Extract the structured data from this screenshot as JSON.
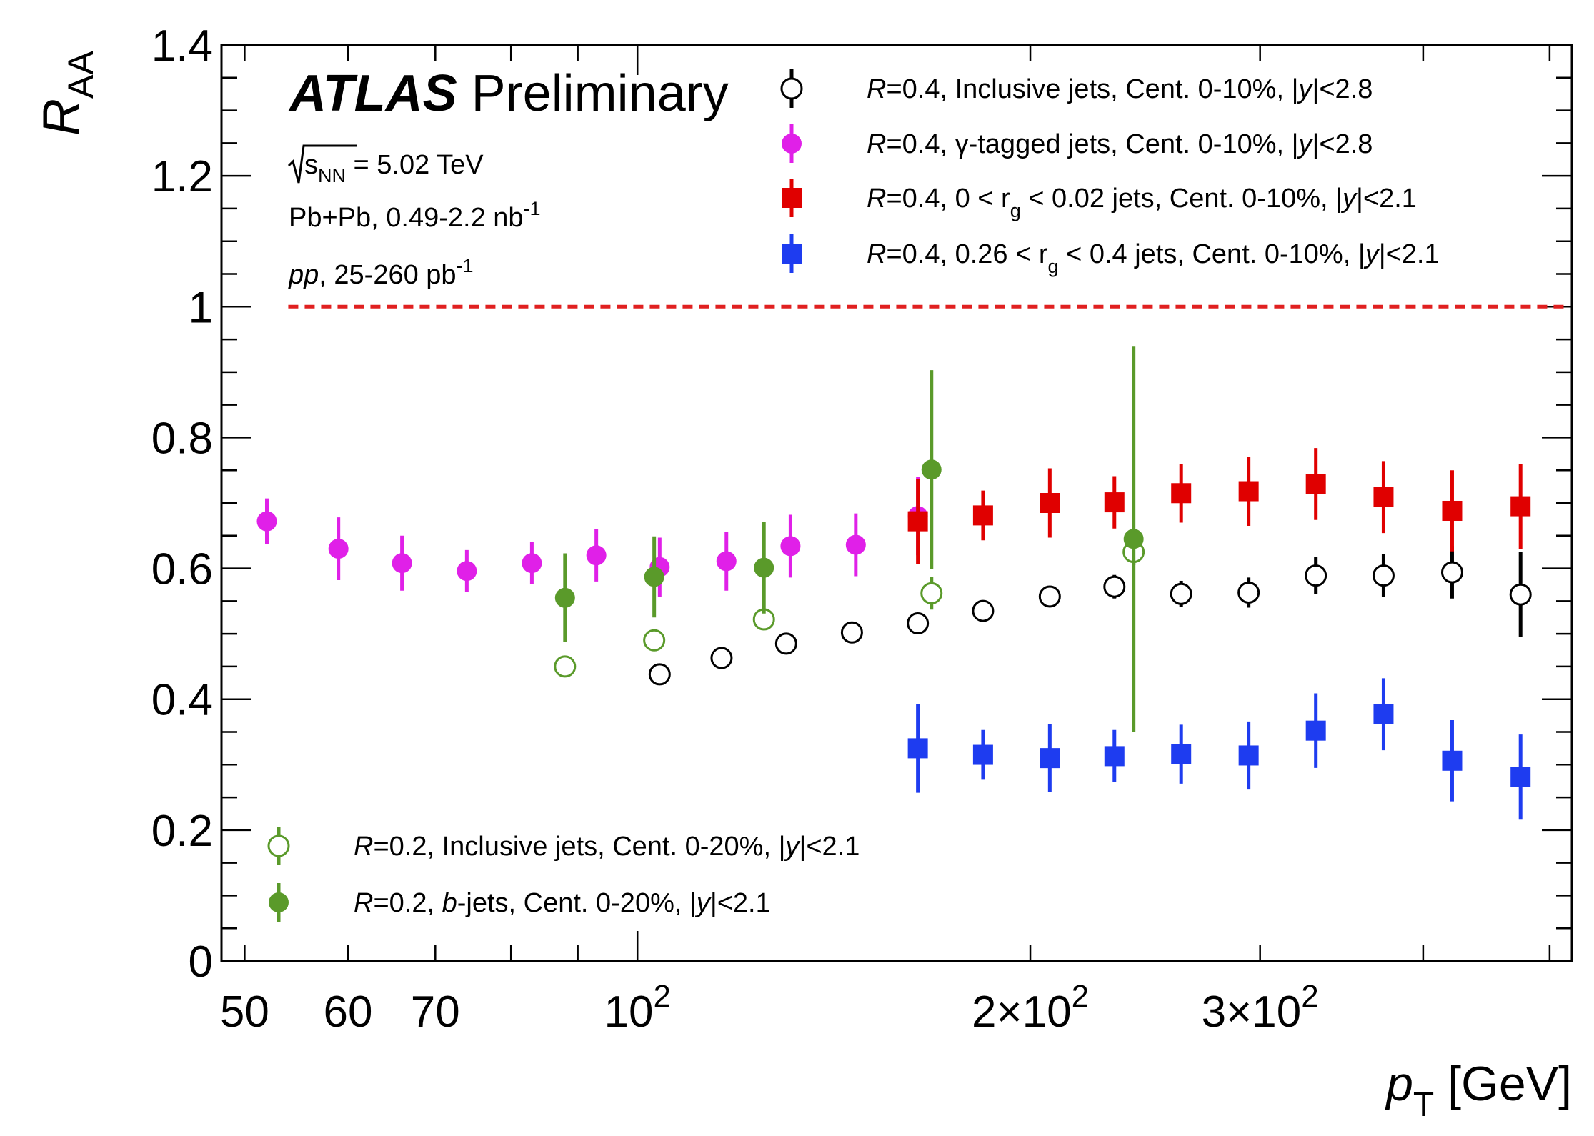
{
  "chart_data": {
    "type": "scatter",
    "title": "",
    "xlabel": {
      "main": "p",
      "sub": "T",
      "unit": "[GeV]"
    },
    "ylabel": {
      "main": "R",
      "sub": "AA"
    },
    "xscale": "log",
    "xlim": [
      48,
      520
    ],
    "ylim": [
      0,
      1.4
    ],
    "x_tick_labels": [
      {
        "value": 50,
        "text": "50"
      },
      {
        "value": 60,
        "text": "60"
      },
      {
        "value": 70,
        "text": "70"
      },
      {
        "value": 100,
        "base": "10",
        "exp": "2"
      },
      {
        "value": 200,
        "base": "2×10",
        "exp": "2"
      },
      {
        "value": 300,
        "base": "3×10",
        "exp": "2"
      }
    ],
    "y_tick_labels": [
      {
        "value": 0,
        "text": "0"
      },
      {
        "value": 0.2,
        "text": "0.2"
      },
      {
        "value": 0.4,
        "text": "0.4"
      },
      {
        "value": 0.6,
        "text": "0.6"
      },
      {
        "value": 0.8,
        "text": "0.8"
      },
      {
        "value": 1,
        "text": "1"
      },
      {
        "value": 1.2,
        "text": "1.2"
      },
      {
        "value": 1.4,
        "text": "1.4"
      }
    ],
    "reference_line": {
      "y": 1,
      "from_x": 54,
      "color": "#e02020",
      "style": "dashed"
    },
    "annotations": {
      "atlas": "ATLAS",
      "preliminary": "Preliminary",
      "energy": {
        "s": "s",
        "sub": "NN",
        "rest": " = 5.02 TeV"
      },
      "pbpb": {
        "text": "Pb+Pb, 0.49-2.2 nb",
        "sup": "-1"
      },
      "pp": {
        "italic": "pp",
        "text": ", 25-260 pb",
        "sup": "-1"
      }
    },
    "series": [
      {
        "color": "#000000",
        "marker": "open-circle",
        "legend": {
          "parts": [
            [
              "i",
              "R"
            ],
            [
              "n",
              "=0.4, Inclusive jets, Cent. 0-10%, |"
            ],
            [
              "i",
              "y"
            ],
            [
              "n",
              "|<2.8"
            ]
          ]
        },
        "points": [
          {
            "x": 104,
            "y": 0.438,
            "err": 0.012
          },
          {
            "x": 116,
            "y": 0.463,
            "err": 0.012
          },
          {
            "x": 130,
            "y": 0.485,
            "err": 0.012
          },
          {
            "x": 146,
            "y": 0.502,
            "err": 0.012
          },
          {
            "x": 164,
            "y": 0.516,
            "err": 0.012
          },
          {
            "x": 184,
            "y": 0.535,
            "err": 0.012
          },
          {
            "x": 207,
            "y": 0.557,
            "err": 0.015
          },
          {
            "x": 232,
            "y": 0.572,
            "err": 0.018
          },
          {
            "x": 261,
            "y": 0.561,
            "err": 0.02
          },
          {
            "x": 294,
            "y": 0.563,
            "err": 0.023
          },
          {
            "x": 331,
            "y": 0.589,
            "err": 0.028
          },
          {
            "x": 373,
            "y": 0.589,
            "err": 0.033
          },
          {
            "x": 421,
            "y": 0.594,
            "err": 0.04
          },
          {
            "x": 475,
            "y": 0.56,
            "err": 0.065
          }
        ]
      },
      {
        "color": "#e020e8",
        "marker": "filled-circle",
        "legend": {
          "parts": [
            [
              "i",
              "R"
            ],
            [
              "n",
              "=0.4, γ-tagged jets, Cent. 0-10%, |"
            ],
            [
              "i",
              "y"
            ],
            [
              "n",
              "|<2.8"
            ]
          ]
        },
        "points": [
          {
            "x": 52,
            "y": 0.672,
            "err": 0.035
          },
          {
            "x": 59,
            "y": 0.63,
            "err": 0.048
          },
          {
            "x": 66,
            "y": 0.608,
            "err": 0.042
          },
          {
            "x": 74,
            "y": 0.596,
            "err": 0.032
          },
          {
            "x": 83,
            "y": 0.608,
            "err": 0.032
          },
          {
            "x": 93,
            "y": 0.62,
            "err": 0.04
          },
          {
            "x": 104,
            "y": 0.602,
            "err": 0.045
          },
          {
            "x": 117,
            "y": 0.611,
            "err": 0.045
          },
          {
            "x": 131,
            "y": 0.634,
            "err": 0.048
          },
          {
            "x": 147,
            "y": 0.636,
            "err": 0.048
          },
          {
            "x": 164,
            "y": 0.68,
            "err": 0.06
          }
        ]
      },
      {
        "color": "#e00000",
        "marker": "filled-square",
        "legend": {
          "parts": [
            [
              "i",
              "R"
            ],
            [
              "n",
              "=0.4, 0 < r"
            ],
            [
              "sub",
              "g"
            ],
            [
              "n",
              " < 0.02 jets, Cent. 0-10%, |"
            ],
            [
              "i",
              "y"
            ],
            [
              "n",
              "|<2.1"
            ]
          ]
        },
        "points": [
          {
            "x": 164,
            "y": 0.672,
            "err": 0.065
          },
          {
            "x": 184,
            "y": 0.681,
            "err": 0.038
          },
          {
            "x": 207,
            "y": 0.7,
            "err": 0.053
          },
          {
            "x": 232,
            "y": 0.701,
            "err": 0.04
          },
          {
            "x": 261,
            "y": 0.715,
            "err": 0.045
          },
          {
            "x": 294,
            "y": 0.718,
            "err": 0.053
          },
          {
            "x": 331,
            "y": 0.729,
            "err": 0.055
          },
          {
            "x": 373,
            "y": 0.709,
            "err": 0.055
          },
          {
            "x": 421,
            "y": 0.688,
            "err": 0.062
          },
          {
            "x": 475,
            "y": 0.695,
            "err": 0.065
          }
        ]
      },
      {
        "color": "#1e3cf0",
        "marker": "filled-square",
        "legend": {
          "parts": [
            [
              "i",
              "R"
            ],
            [
              "n",
              "=0.4, 0.26 < r"
            ],
            [
              "sub",
              "g"
            ],
            [
              "n",
              " < 0.4 jets, Cent. 0-10%, |"
            ],
            [
              "i",
              "y"
            ],
            [
              "n",
              "|<2.1"
            ]
          ]
        },
        "points": [
          {
            "x": 164,
            "y": 0.325,
            "err": 0.068
          },
          {
            "x": 184,
            "y": 0.315,
            "err": 0.038
          },
          {
            "x": 207,
            "y": 0.31,
            "err": 0.052
          },
          {
            "x": 232,
            "y": 0.313,
            "err": 0.04
          },
          {
            "x": 261,
            "y": 0.316,
            "err": 0.045
          },
          {
            "x": 294,
            "y": 0.314,
            "err": 0.052
          },
          {
            "x": 331,
            "y": 0.352,
            "err": 0.057
          },
          {
            "x": 373,
            "y": 0.377,
            "err": 0.055
          },
          {
            "x": 421,
            "y": 0.306,
            "err": 0.062
          },
          {
            "x": 475,
            "y": 0.281,
            "err": 0.065
          }
        ]
      },
      {
        "color": "#5a9a2a",
        "marker": "open-circle",
        "legend": {
          "parts": [
            [
              "i",
              "R"
            ],
            [
              "n",
              "=0.2, Inclusive jets, Cent. 0-20%, |"
            ],
            [
              "i",
              "y"
            ],
            [
              "n",
              "|<2.1"
            ]
          ]
        },
        "points": [
          {
            "x": 88,
            "y": 0.45,
            "err": 0.015
          },
          {
            "x": 103,
            "y": 0.49,
            "err": 0.015
          },
          {
            "x": 125,
            "y": 0.522,
            "err": 0.015
          },
          {
            "x": 168,
            "y": 0.562,
            "err": 0.025
          },
          {
            "x": 240,
            "y": 0.625,
            "err": 0.02
          }
        ]
      },
      {
        "color": "#5a9a2a",
        "marker": "filled-circle",
        "legend": {
          "parts": [
            [
              "i",
              "R"
            ],
            [
              "n",
              "=0.2, "
            ],
            [
              "i",
              "b"
            ],
            [
              "n",
              "-jets, Cent. 0-20%, |"
            ],
            [
              "i",
              "y"
            ],
            [
              "n",
              "|<2.1"
            ]
          ]
        },
        "points": [
          {
            "x": 88,
            "y": 0.555,
            "err": 0.068
          },
          {
            "x": 103,
            "y": 0.587,
            "err": 0.062
          },
          {
            "x": 125,
            "y": 0.601,
            "err": 0.07
          },
          {
            "x": 168,
            "y": 0.751,
            "err": 0.152
          },
          {
            "x": 240,
            "y": 0.645,
            "err": 0.295
          }
        ]
      }
    ]
  }
}
